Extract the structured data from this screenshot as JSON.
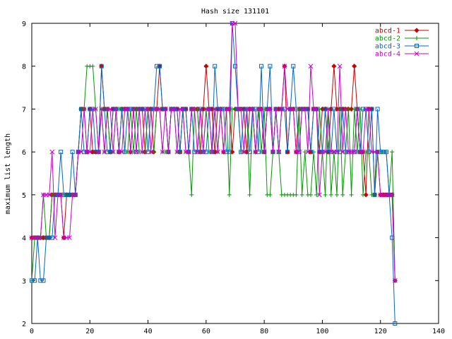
{
  "chart_data": {
    "type": "line",
    "title": "Hash size 131101",
    "xlabel": "",
    "ylabel": "maximum list length",
    "xlim": [
      0,
      140
    ],
    "ylim": [
      2,
      9
    ],
    "xticks": [
      0,
      20,
      40,
      60,
      80,
      100,
      120,
      140
    ],
    "yticks": [
      2,
      3,
      4,
      5,
      6,
      7,
      8,
      9
    ],
    "grid": false,
    "legend_position": "top-right",
    "series": [
      {
        "name": "abcd-1",
        "color": "#cc0000",
        "marker": "diamond",
        "x": [
          0,
          1,
          2,
          3,
          4,
          5,
          6,
          7,
          8,
          9,
          10,
          11,
          12,
          13,
          14,
          15,
          16,
          17,
          18,
          19,
          20,
          21,
          22,
          23,
          24,
          25,
          26,
          27,
          28,
          29,
          30,
          31,
          32,
          33,
          34,
          35,
          36,
          37,
          38,
          39,
          40,
          41,
          42,
          43,
          44,
          45,
          46,
          47,
          48,
          49,
          50,
          51,
          52,
          53,
          54,
          55,
          56,
          57,
          58,
          59,
          60,
          61,
          62,
          63,
          64,
          65,
          66,
          67,
          68,
          69,
          70,
          71,
          72,
          73,
          74,
          75,
          76,
          77,
          78,
          79,
          80,
          81,
          82,
          83,
          84,
          85,
          86,
          87,
          88,
          89,
          90,
          91,
          92,
          93,
          94,
          95,
          96,
          97,
          98,
          99,
          100,
          101,
          102,
          103,
          104,
          105,
          106,
          107,
          108,
          109,
          110,
          111,
          112,
          113,
          114,
          115,
          116,
          117,
          118,
          119,
          120,
          121,
          122,
          123,
          124,
          125
        ],
        "y": [
          4,
          4,
          4,
          4,
          4,
          4,
          4,
          5,
          5,
          5,
          5,
          4,
          5,
          5,
          5,
          5,
          6,
          7,
          7,
          6,
          7,
          6,
          6,
          6,
          8,
          7,
          7,
          6,
          7,
          7,
          6,
          7,
          7,
          7,
          6,
          7,
          7,
          7,
          7,
          6,
          7,
          7,
          6,
          7,
          8,
          7,
          7,
          6,
          7,
          7,
          7,
          6,
          7,
          7,
          6,
          7,
          7,
          7,
          6,
          7,
          8,
          7,
          7,
          6,
          7,
          7,
          6,
          7,
          7,
          6,
          7,
          7,
          7,
          7,
          6,
          7,
          7,
          6,
          7,
          7,
          6,
          7,
          7,
          6,
          7,
          7,
          7,
          8,
          6,
          7,
          7,
          6,
          7,
          7,
          7,
          7,
          6,
          7,
          7,
          6,
          7,
          7,
          6,
          7,
          8,
          7,
          7,
          7,
          7,
          7,
          7,
          8,
          7,
          6,
          6,
          5,
          7,
          7,
          5,
          6,
          5,
          5,
          5,
          5,
          5,
          3
        ]
      },
      {
        "name": "abcd-2",
        "color": "#009900",
        "marker": "plus",
        "x": [
          0,
          1,
          2,
          3,
          4,
          5,
          6,
          7,
          8,
          9,
          10,
          11,
          12,
          13,
          14,
          15,
          16,
          17,
          18,
          19,
          20,
          21,
          22,
          23,
          24,
          25,
          26,
          27,
          28,
          29,
          30,
          31,
          32,
          33,
          34,
          35,
          36,
          37,
          38,
          39,
          40,
          41,
          42,
          43,
          44,
          45,
          46,
          47,
          48,
          49,
          50,
          51,
          52,
          53,
          54,
          55,
          56,
          57,
          58,
          59,
          60,
          61,
          62,
          63,
          64,
          65,
          66,
          67,
          68,
          69,
          70,
          71,
          72,
          73,
          74,
          75,
          76,
          77,
          78,
          79,
          80,
          81,
          82,
          83,
          84,
          85,
          86,
          87,
          88,
          89,
          90,
          91,
          92,
          93,
          94,
          95,
          96,
          97,
          98,
          99,
          100,
          101,
          102,
          103,
          104,
          105,
          106,
          107,
          108,
          109,
          110,
          111,
          112,
          113,
          114,
          115,
          116,
          117,
          118,
          119,
          120,
          121,
          122,
          123,
          124,
          125
        ],
        "y": [
          3,
          4,
          4,
          4,
          5,
          4,
          4,
          5,
          5,
          5,
          5,
          5,
          5,
          5,
          5,
          5,
          6,
          7,
          7,
          8,
          8,
          8,
          7,
          6,
          7,
          6,
          7,
          6,
          6,
          7,
          7,
          7,
          6,
          6,
          7,
          6,
          7,
          6,
          6,
          6,
          7,
          6,
          6,
          7,
          7,
          6,
          6,
          6,
          7,
          7,
          6,
          6,
          7,
          6,
          6,
          5,
          7,
          7,
          6,
          6,
          7,
          6,
          6,
          7,
          6,
          7,
          7,
          7,
          5,
          7,
          7,
          7,
          6,
          6,
          7,
          5,
          7,
          6,
          7,
          6,
          7,
          5,
          5,
          6,
          7,
          6,
          5,
          5,
          5,
          5,
          5,
          5,
          7,
          5,
          6,
          5,
          5,
          6,
          5,
          7,
          6,
          5,
          7,
          5,
          6,
          5,
          7,
          5,
          6,
          7,
          5,
          7,
          6,
          7,
          5,
          6,
          6,
          5,
          5,
          6,
          6,
          6,
          6,
          5,
          6,
          3
        ]
      },
      {
        "name": "abcd-3",
        "color": "#0066cc",
        "marker": "square",
        "x": [
          0,
          1,
          2,
          3,
          4,
          5,
          6,
          7,
          8,
          9,
          10,
          11,
          12,
          13,
          14,
          15,
          16,
          17,
          18,
          19,
          20,
          21,
          22,
          23,
          24,
          25,
          26,
          27,
          28,
          29,
          30,
          31,
          32,
          33,
          34,
          35,
          36,
          37,
          38,
          39,
          40,
          41,
          42,
          43,
          44,
          45,
          46,
          47,
          48,
          49,
          50,
          51,
          52,
          53,
          54,
          55,
          56,
          57,
          58,
          59,
          60,
          61,
          62,
          63,
          64,
          65,
          66,
          67,
          68,
          69,
          70,
          71,
          72,
          73,
          74,
          75,
          76,
          77,
          78,
          79,
          80,
          81,
          82,
          83,
          84,
          85,
          86,
          87,
          88,
          89,
          90,
          91,
          92,
          93,
          94,
          95,
          96,
          97,
          98,
          99,
          100,
          101,
          102,
          103,
          104,
          105,
          106,
          107,
          108,
          109,
          110,
          111,
          112,
          113,
          114,
          115,
          116,
          117,
          118,
          119,
          120,
          121,
          122,
          123,
          124,
          125
        ],
        "y": [
          3,
          3,
          4,
          3,
          3,
          4,
          4,
          4,
          5,
          5,
          6,
          5,
          5,
          5,
          6,
          5,
          6,
          7,
          6,
          6,
          7,
          7,
          6,
          6,
          8,
          7,
          6,
          6,
          7,
          7,
          6,
          7,
          6,
          7,
          7,
          7,
          6,
          7,
          7,
          7,
          6,
          7,
          7,
          8,
          8,
          7,
          7,
          6,
          7,
          7,
          7,
          6,
          7,
          7,
          6,
          7,
          6,
          6,
          7,
          6,
          6,
          7,
          6,
          8,
          7,
          7,
          7,
          6,
          6,
          9,
          8,
          7,
          6,
          7,
          7,
          6,
          7,
          7,
          6,
          8,
          6,
          7,
          8,
          6,
          7,
          6,
          7,
          7,
          6,
          7,
          8,
          7,
          6,
          7,
          7,
          7,
          6,
          7,
          7,
          6,
          6,
          7,
          6,
          6,
          7,
          6,
          6,
          7,
          6,
          6,
          6,
          6,
          7,
          6,
          7,
          7,
          6,
          7,
          5,
          7,
          6,
          6,
          6,
          5,
          4,
          2
        ]
      },
      {
        "name": "abcd-4",
        "color": "#cc00cc",
        "marker": "x",
        "x": [
          0,
          1,
          2,
          3,
          4,
          5,
          6,
          7,
          8,
          9,
          10,
          11,
          12,
          13,
          14,
          15,
          16,
          17,
          18,
          19,
          20,
          21,
          22,
          23,
          24,
          25,
          26,
          27,
          28,
          29,
          30,
          31,
          32,
          33,
          34,
          35,
          36,
          37,
          38,
          39,
          40,
          41,
          42,
          43,
          44,
          45,
          46,
          47,
          48,
          49,
          50,
          51,
          52,
          53,
          54,
          55,
          56,
          57,
          58,
          59,
          60,
          61,
          62,
          63,
          64,
          65,
          66,
          67,
          68,
          69,
          70,
          71,
          72,
          73,
          74,
          75,
          76,
          77,
          78,
          79,
          80,
          81,
          82,
          83,
          84,
          85,
          86,
          87,
          88,
          89,
          90,
          91,
          92,
          93,
          94,
          95,
          96,
          97,
          98,
          99,
          100,
          101,
          102,
          103,
          104,
          105,
          106,
          107,
          108,
          109,
          110,
          111,
          112,
          113,
          114,
          115,
          116,
          117,
          118,
          119,
          120,
          121,
          122,
          123,
          124,
          125
        ],
        "y": [
          4,
          4,
          4,
          4,
          5,
          5,
          5,
          6,
          4,
          5,
          5,
          4,
          4,
          4,
          5,
          5,
          6,
          6,
          7,
          6,
          6,
          7,
          7,
          6,
          7,
          6,
          7,
          7,
          6,
          7,
          6,
          6,
          7,
          7,
          6,
          7,
          6,
          7,
          6,
          7,
          7,
          6,
          7,
          7,
          7,
          6,
          7,
          6,
          7,
          7,
          6,
          7,
          7,
          6,
          6,
          7,
          7,
          6,
          7,
          6,
          7,
          7,
          6,
          7,
          6,
          7,
          6,
          7,
          7,
          9,
          9,
          7,
          7,
          6,
          7,
          7,
          7,
          6,
          7,
          7,
          6,
          7,
          7,
          6,
          7,
          6,
          7,
          8,
          7,
          7,
          7,
          6,
          6,
          7,
          7,
          6,
          8,
          7,
          7,
          5,
          6,
          6,
          7,
          6,
          6,
          6,
          8,
          6,
          7,
          6,
          6,
          6,
          7,
          6,
          6,
          7,
          7,
          6,
          6,
          6,
          5,
          5,
          5,
          5,
          5,
          3
        ]
      }
    ]
  }
}
